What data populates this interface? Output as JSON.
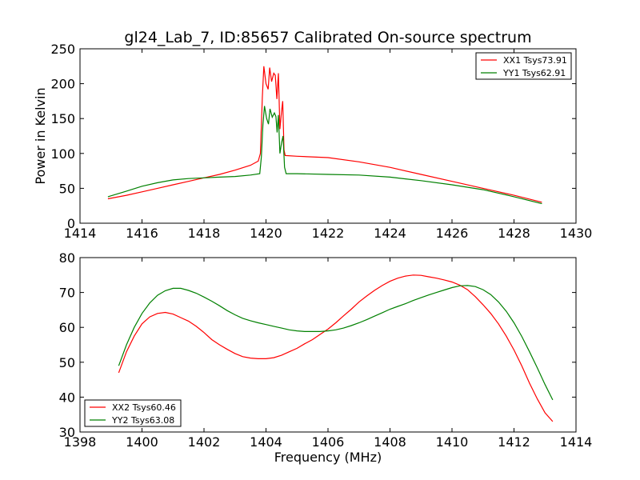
{
  "figure": {
    "title": "gl24_Lab_7, ID:85657 Calibrated On-source spectrum"
  },
  "chart_data": [
    {
      "type": "line",
      "title": "gl24_Lab_7, ID:85657 Calibrated On-source spectrum",
      "xlabel": "",
      "ylabel": "Power in Kelvin",
      "xlim": [
        1414,
        1430
      ],
      "ylim": [
        0,
        250
      ],
      "xticks": [
        1414,
        1416,
        1418,
        1420,
        1422,
        1424,
        1426,
        1428,
        1430
      ],
      "yticks": [
        0,
        50,
        100,
        150,
        200,
        250
      ],
      "legend_position": "top-right",
      "grid": false,
      "series": [
        {
          "name": "XX1 Tsys73.91",
          "color": "#ff0000",
          "points": [
            [
              1414.9,
              35
            ],
            [
              1415.5,
              40
            ],
            [
              1416,
              45
            ],
            [
              1416.5,
              50
            ],
            [
              1417,
              55
            ],
            [
              1417.5,
              60
            ],
            [
              1418,
              65
            ],
            [
              1418.5,
              70
            ],
            [
              1419,
              76
            ],
            [
              1419.5,
              83
            ],
            [
              1419.75,
              89
            ],
            [
              1419.82,
              100
            ],
            [
              1419.88,
              180
            ],
            [
              1419.93,
              225
            ],
            [
              1420.0,
              200
            ],
            [
              1420.07,
              192
            ],
            [
              1420.12,
              223
            ],
            [
              1420.18,
              203
            ],
            [
              1420.25,
              215
            ],
            [
              1420.3,
              212
            ],
            [
              1420.35,
              178
            ],
            [
              1420.4,
              215
            ],
            [
              1420.45,
              135
            ],
            [
              1420.5,
              160
            ],
            [
              1420.54,
              175
            ],
            [
              1420.58,
              105
            ],
            [
              1420.62,
              97
            ],
            [
              1421,
              96
            ],
            [
              1422,
              94
            ],
            [
              1423,
              88
            ],
            [
              1424,
              80
            ],
            [
              1425,
              70
            ],
            [
              1426,
              60
            ],
            [
              1427,
              50
            ],
            [
              1428,
              40
            ],
            [
              1428.9,
              30
            ]
          ]
        },
        {
          "name": "YY1 Tsys62.91",
          "color": "#008000",
          "points": [
            [
              1414.9,
              38
            ],
            [
              1415.5,
              46
            ],
            [
              1416,
              53
            ],
            [
              1416.5,
              58
            ],
            [
              1417,
              62
            ],
            [
              1417.5,
              64
            ],
            [
              1418,
              65
            ],
            [
              1418.5,
              66
            ],
            [
              1419,
              67
            ],
            [
              1419.5,
              69
            ],
            [
              1419.8,
              71
            ],
            [
              1419.85,
              95
            ],
            [
              1419.9,
              140
            ],
            [
              1419.95,
              168
            ],
            [
              1420.02,
              150
            ],
            [
              1420.08,
              142
            ],
            [
              1420.13,
              164
            ],
            [
              1420.2,
              152
            ],
            [
              1420.27,
              158
            ],
            [
              1420.32,
              153
            ],
            [
              1420.36,
              130
            ],
            [
              1420.4,
              155
            ],
            [
              1420.45,
              100
            ],
            [
              1420.5,
              115
            ],
            [
              1420.55,
              125
            ],
            [
              1420.6,
              80
            ],
            [
              1420.65,
              71
            ],
            [
              1421,
              71
            ],
            [
              1422,
              70
            ],
            [
              1423,
              69
            ],
            [
              1424,
              66
            ],
            [
              1425,
              61
            ],
            [
              1426,
              55
            ],
            [
              1427,
              48
            ],
            [
              1428,
              38
            ],
            [
              1428.9,
              28
            ]
          ]
        }
      ]
    },
    {
      "type": "line",
      "title": "",
      "xlabel": "Frequency (MHz)",
      "ylabel": "",
      "xlim": [
        1398,
        1414
      ],
      "ylim": [
        30,
        80
      ],
      "xticks": [
        1398,
        1400,
        1402,
        1404,
        1406,
        1408,
        1410,
        1412,
        1414
      ],
      "yticks": [
        30,
        40,
        50,
        60,
        70,
        80
      ],
      "legend_position": "bottom-left",
      "grid": false,
      "series": [
        {
          "name": "XX2 Tsys60.46",
          "color": "#ff0000",
          "points": [
            [
              1399.25,
              47
            ],
            [
              1399.5,
              53
            ],
            [
              1399.75,
              57.5
            ],
            [
              1400,
              61
            ],
            [
              1400.25,
              63
            ],
            [
              1400.5,
              64
            ],
            [
              1400.75,
              64.3
            ],
            [
              1401,
              63.8
            ],
            [
              1401.25,
              62.8
            ],
            [
              1401.5,
              61.8
            ],
            [
              1401.75,
              60.3
            ],
            [
              1402,
              58.5
            ],
            [
              1402.25,
              56.5
            ],
            [
              1402.5,
              55
            ],
            [
              1402.75,
              53.7
            ],
            [
              1403,
              52.5
            ],
            [
              1403.25,
              51.6
            ],
            [
              1403.5,
              51.2
            ],
            [
              1403.75,
              51
            ],
            [
              1404,
              51
            ],
            [
              1404.25,
              51.3
            ],
            [
              1404.5,
              52
            ],
            [
              1404.75,
              53
            ],
            [
              1405,
              54
            ],
            [
              1405.25,
              55.3
            ],
            [
              1405.5,
              56.5
            ],
            [
              1405.75,
              58
            ],
            [
              1406,
              59.5
            ],
            [
              1406.25,
              61.3
            ],
            [
              1406.5,
              63.3
            ],
            [
              1406.75,
              65.2
            ],
            [
              1407,
              67.3
            ],
            [
              1407.25,
              69
            ],
            [
              1407.5,
              70.6
            ],
            [
              1407.75,
              72
            ],
            [
              1408,
              73.2
            ],
            [
              1408.25,
              74.1
            ],
            [
              1408.5,
              74.7
            ],
            [
              1408.75,
              75
            ],
            [
              1409,
              74.9
            ],
            [
              1409.25,
              74.5
            ],
            [
              1409.5,
              74.1
            ],
            [
              1409.75,
              73.6
            ],
            [
              1410,
              73
            ],
            [
              1410.25,
              72.1
            ],
            [
              1410.5,
              70.8
            ],
            [
              1410.75,
              68.8
            ],
            [
              1411,
              66.5
            ],
            [
              1411.25,
              64
            ],
            [
              1411.5,
              61
            ],
            [
              1411.75,
              57.5
            ],
            [
              1412,
              53.5
            ],
            [
              1412.25,
              49
            ],
            [
              1412.5,
              44
            ],
            [
              1412.75,
              39.5
            ],
            [
              1413,
              35.5
            ],
            [
              1413.25,
              33
            ]
          ]
        },
        {
          "name": "YY2 Tsys63.08",
          "color": "#008000",
          "points": [
            [
              1399.25,
              49
            ],
            [
              1399.5,
              55
            ],
            [
              1399.75,
              60
            ],
            [
              1400,
              64
            ],
            [
              1400.25,
              67
            ],
            [
              1400.5,
              69.2
            ],
            [
              1400.75,
              70.5
            ],
            [
              1401,
              71.2
            ],
            [
              1401.25,
              71.2
            ],
            [
              1401.5,
              70.6
            ],
            [
              1401.75,
              69.8
            ],
            [
              1402,
              68.7
            ],
            [
              1402.25,
              67.5
            ],
            [
              1402.5,
              66.2
            ],
            [
              1402.75,
              64.8
            ],
            [
              1403,
              63.6
            ],
            [
              1403.25,
              62.6
            ],
            [
              1403.5,
              61.9
            ],
            [
              1403.75,
              61.3
            ],
            [
              1404,
              60.8
            ],
            [
              1404.25,
              60.3
            ],
            [
              1404.5,
              59.8
            ],
            [
              1404.75,
              59.3
            ],
            [
              1405,
              59
            ],
            [
              1405.25,
              58.8
            ],
            [
              1405.5,
              58.8
            ],
            [
              1405.75,
              58.8
            ],
            [
              1406,
              59
            ],
            [
              1406.25,
              59.3
            ],
            [
              1406.5,
              59.8
            ],
            [
              1406.75,
              60.5
            ],
            [
              1407,
              61.3
            ],
            [
              1407.25,
              62.2
            ],
            [
              1407.5,
              63.2
            ],
            [
              1407.75,
              64.2
            ],
            [
              1408,
              65.2
            ],
            [
              1408.25,
              66
            ],
            [
              1408.5,
              66.8
            ],
            [
              1408.75,
              67.7
            ],
            [
              1409,
              68.5
            ],
            [
              1409.25,
              69.3
            ],
            [
              1409.5,
              70
            ],
            [
              1409.75,
              70.7
            ],
            [
              1410,
              71.4
            ],
            [
              1410.25,
              71.9
            ],
            [
              1410.5,
              72
            ],
            [
              1410.75,
              71.7
            ],
            [
              1411,
              70.8
            ],
            [
              1411.25,
              69.4
            ],
            [
              1411.5,
              67.3
            ],
            [
              1411.75,
              64.6
            ],
            [
              1412,
              61.3
            ],
            [
              1412.25,
              57.4
            ],
            [
              1412.5,
              53
            ],
            [
              1412.75,
              48.4
            ],
            [
              1413,
              43.6
            ],
            [
              1413.25,
              39.2
            ]
          ]
        }
      ]
    }
  ]
}
